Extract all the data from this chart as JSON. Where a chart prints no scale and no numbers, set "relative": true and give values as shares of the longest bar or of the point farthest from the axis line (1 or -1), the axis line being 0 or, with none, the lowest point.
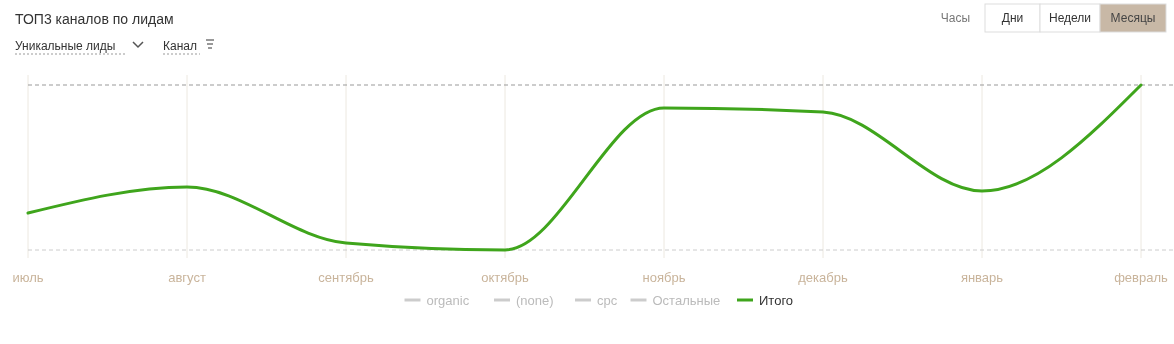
{
  "chart_data": {
    "type": "line",
    "title": "ТОП3 каналов по лидам",
    "relative": true,
    "categories": [
      "июль",
      "август",
      "сентябрь",
      "октябрь",
      "ноябрь",
      "декабрь",
      "январь",
      "февраль"
    ],
    "series": [
      {
        "name": "organic",
        "color": "#cccccc",
        "values": [
          null,
          null,
          null,
          null,
          null,
          null,
          null,
          null
        ]
      },
      {
        "name": "(none)",
        "color": "#cccccc",
        "values": [
          null,
          null,
          null,
          null,
          null,
          null,
          null,
          null
        ]
      },
      {
        "name": "cpc",
        "color": "#cccccc",
        "values": [
          null,
          null,
          null,
          null,
          null,
          null,
          null,
          null
        ]
      },
      {
        "name": "Остальные",
        "color": "#cccccc",
        "values": [
          null,
          null,
          null,
          null,
          null,
          null,
          null,
          null
        ]
      },
      {
        "name": "Итого",
        "color": "#3fa51c",
        "values": [
          0.224,
          0.382,
          0.042,
          0,
          0.861,
          0.836,
          0.358,
          1
        ]
      }
    ],
    "ref_lines": [
      {
        "axis": "y",
        "value": 1,
        "color": "#999999",
        "line_style": "dashed"
      },
      {
        "axis": "y",
        "value": 0,
        "color": "#cccccc",
        "line_style": "dashed"
      }
    ],
    "grid": "x",
    "legend": "bottom",
    "marker": "none",
    "line_style": "solid",
    "annotations": [
      "Уникальные лиды",
      "Канал",
      "Часы",
      "Дни",
      "Недели",
      "Месяцы"
    ]
  }
}
